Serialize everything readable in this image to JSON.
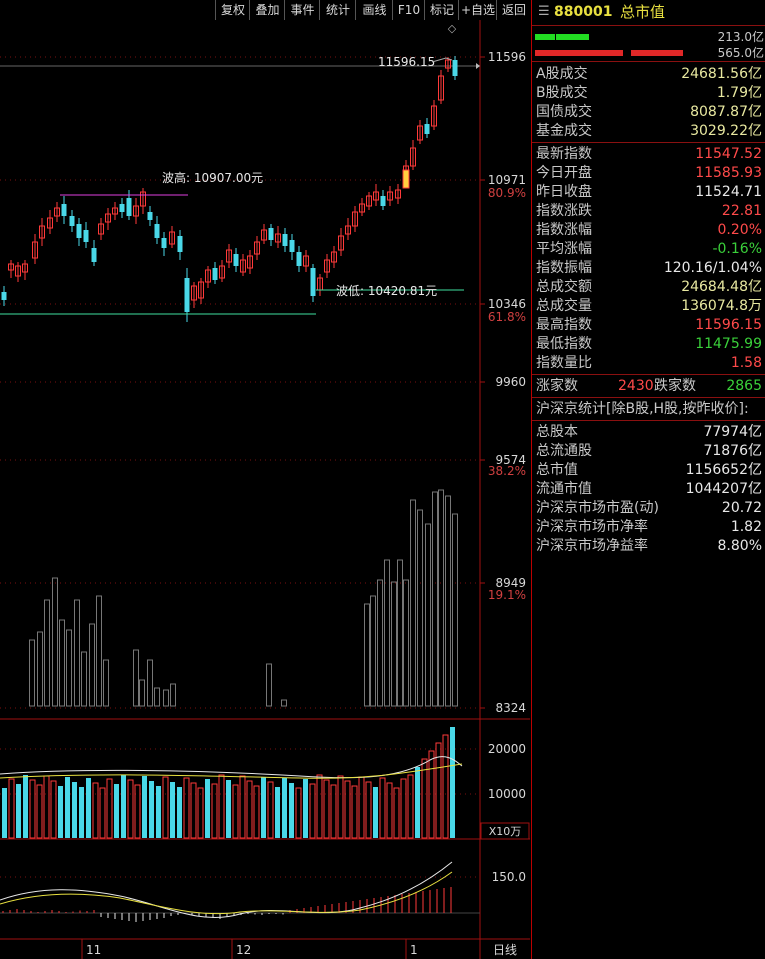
{
  "toolbar": {
    "buttons": [
      "复权",
      "叠加",
      "事件",
      "统计",
      "画线",
      "F10",
      "标记",
      "+自选",
      "返回"
    ]
  },
  "panel": {
    "code": "880001",
    "name": "总市值",
    "bar_top_value": "213.0亿",
    "bar_bottom_value": "565.0亿",
    "turnover": [
      {
        "k": "A股成交",
        "v": "24681.56亿",
        "c": "yel"
      },
      {
        "k": "B股成交",
        "v": "1.79亿",
        "c": "yel"
      },
      {
        "k": "国债成交",
        "v": "8087.87亿",
        "c": "yel"
      },
      {
        "k": "基金成交",
        "v": "3029.22亿",
        "c": "yel"
      }
    ],
    "stats": [
      {
        "k": "最新指数",
        "v": "11547.52",
        "c": "red"
      },
      {
        "k": "今日开盘",
        "v": "11585.93",
        "c": "red"
      },
      {
        "k": "昨日收盘",
        "v": "11524.71",
        "c": "white"
      },
      {
        "k": "指数涨跌",
        "v": "22.81",
        "c": "red"
      },
      {
        "k": "指数涨幅",
        "v": "0.20%",
        "c": "red"
      },
      {
        "k": "平均涨幅",
        "v": "-0.16%",
        "c": "green"
      },
      {
        "k": "指数振幅",
        "v": "120.16/1.04%",
        "c": "white"
      },
      {
        "k": "总成交额",
        "v": "24684.48亿",
        "c": "yel"
      },
      {
        "k": "总成交量",
        "v": "136074.8万",
        "c": "yel"
      },
      {
        "k": "最高指数",
        "v": "11596.15",
        "c": "red"
      },
      {
        "k": "最低指数",
        "v": "11475.99",
        "c": "green"
      },
      {
        "k": "指数量比",
        "v": "1.58",
        "c": "red"
      }
    ],
    "updown": {
      "up_label": "涨家数",
      "up": "2430",
      "down_label": "跌家数",
      "down": "2865"
    },
    "market_title": "沪深京统计[除B股,H股,按昨收价]:",
    "market": [
      {
        "k": "总股本",
        "v": "77974亿"
      },
      {
        "k": "总流通股",
        "v": "71876亿"
      },
      {
        "k": "总市值",
        "v": "1156652亿"
      },
      {
        "k": "流通市值",
        "v": "1044207亿"
      },
      {
        "k": "沪深京市场市盈(动)",
        "v": "20.72"
      },
      {
        "k": "沪深京市场市净率",
        "v": "1.82"
      },
      {
        "k": "沪深京市场净益率",
        "v": "8.80%"
      }
    ]
  },
  "chart_data": {
    "type": "candlestick",
    "price_ticks": [
      "11596",
      "10971",
      "10346",
      "9960",
      "9574",
      "8949",
      "8324"
    ],
    "pct_ticks": [
      "80.9%",
      "61.8%",
      "38.2%",
      "19.1%"
    ],
    "annotations": {
      "high_label": "波高: 10907.00元",
      "low_label": "波低: 10420.81元",
      "last_high": "11596.15"
    },
    "volume_ticks": [
      "20000",
      "10000"
    ],
    "volume_unit": "X10万",
    "macd_tick": "150.0",
    "x_labels": [
      "11",
      "12",
      "1"
    ],
    "period_label": "日线"
  }
}
